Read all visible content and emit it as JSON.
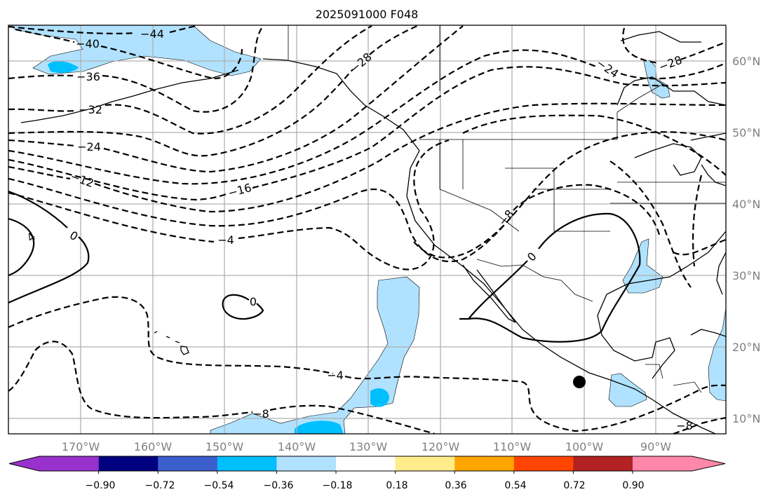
{
  "title": "2025091000 F048",
  "map": {
    "lon_labels": [
      "170°W",
      "160°W",
      "150°W",
      "140°W",
      "130°W",
      "120°W",
      "110°W",
      "100°W",
      "90°W"
    ],
    "lat_labels": [
      "60°N",
      "50°N",
      "40°N",
      "30°N",
      "20°N",
      "10°N"
    ],
    "contour_labels": {
      "c44": "−44",
      "c40": "−40",
      "c36": "−36",
      "c32": "−32",
      "c28w": "−28",
      "c24": "−24",
      "c16": "−16",
      "c12": "−12",
      "c4a": "−4",
      "c4b": "−4",
      "c8a": "−8",
      "c8b": "−8",
      "c8c": "−8",
      "c24e": "−24",
      "c28e": "−28",
      "z1": "0",
      "z2": "0",
      "z3": "0",
      "p4": "4"
    },
    "colors": {
      "light_blue": "#b0e2ff",
      "deep_sky_blue": "#00bfff"
    }
  },
  "colorbar": {
    "ticks": [
      "−0.90",
      "−0.72",
      "−0.54",
      "−0.36",
      "−0.18",
      "0.18",
      "0.36",
      "0.54",
      "0.72",
      "0.90"
    ],
    "colors": [
      "#9932cc",
      "#000080",
      "#3b5fcd",
      "#00bfff",
      "#b0e2ff",
      "#ffffff",
      "#ffec8b",
      "#ffa500",
      "#ff4500",
      "#b22222",
      "#ff88aa"
    ]
  }
}
